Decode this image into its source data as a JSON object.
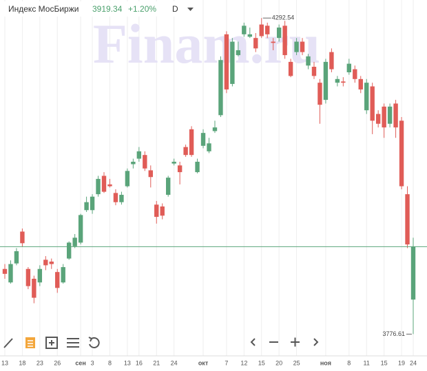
{
  "chart_data": {
    "type": "candlestick",
    "title": "Индекс МосБиржи",
    "change": "+1.20%",
    "interval": "D",
    "watermark": "Finam.ru",
    "categories": [
      "13",
      null,
      null,
      "18",
      null,
      null,
      "23",
      null,
      null,
      "26",
      null,
      null,
      null,
      "сен",
      null,
      "3",
      null,
      null,
      "8",
      null,
      null,
      "13",
      null,
      "16",
      null,
      null,
      "21",
      null,
      null,
      "24",
      null,
      null,
      null,
      null,
      "окт",
      null,
      null,
      null,
      "7",
      null,
      null,
      "12",
      null,
      null,
      "15",
      null,
      null,
      "20",
      null,
      null,
      "25",
      null,
      null,
      null,
      null,
      "ноя",
      null,
      null,
      null,
      "8",
      null,
      null,
      "11",
      null,
      null,
      "15",
      null,
      null,
      "19",
      null,
      "24"
    ],
    "open": [
      3883,
      3861,
      3892,
      3944,
      3883,
      3867,
      3861,
      3898,
      3895,
      3878,
      3861,
      3900,
      3920,
      3926,
      3979,
      3979,
      4005,
      4035,
      4021,
      4007,
      3992,
      4018,
      4054,
      4063,
      4069,
      4044,
      3988,
      3985,
      4004,
      4055,
      4052,
      4082,
      4111,
      4041,
      4084,
      4075,
      4108,
      4134,
      4266,
      4185,
      4232,
      4266,
      4262,
      4260,
      4282,
      4280,
      4254,
      4260,
      4280,
      4221,
      4237,
      4254,
      4215,
      4213,
      4187,
      4159,
      4237,
      4187,
      4189,
      4204,
      4209,
      4193,
      4142,
      4181,
      4136,
      4148,
      4120,
      4153,
      4125,
      4005,
      3833
    ],
    "high": [
      3891,
      3897,
      3917,
      3949,
      3886,
      3872,
      3889,
      3904,
      3900,
      3883,
      3891,
      3928,
      3940,
      3973,
      4001,
      4005,
      4035,
      4041,
      4030,
      4013,
      4009,
      4047,
      4063,
      4082,
      4075,
      4052,
      3994,
      3990,
      4035,
      4063,
      4058,
      4086,
      4116,
      4063,
      4111,
      4097,
      4125,
      4230,
      4271,
      4260,
      4254,
      4285,
      4277,
      4268,
      4292.54,
      4285,
      4260,
      4282,
      4288,
      4226,
      4260,
      4260,
      4234,
      4221,
      4193,
      4226,
      4243,
      4198,
      4196,
      4226,
      4215,
      4198,
      4193,
      4187,
      4142,
      4153,
      4153,
      4159,
      4131,
      4018,
      3934
    ],
    "low": [
      3867,
      3859,
      3889,
      3919,
      3850,
      3827,
      3855,
      3881,
      3883,
      3844,
      3859,
      3898,
      3917,
      3923,
      3976,
      3973,
      4001,
      4007,
      4016,
      3987,
      3988,
      4016,
      4047,
      4058,
      4043,
      4016,
      3957,
      3964,
      4001,
      4052,
      4021,
      4066,
      4066,
      4039,
      4080,
      4072,
      4105,
      4131,
      4170,
      4181,
      4230,
      4262,
      4260,
      4237,
      4260,
      4260,
      4240,
      4254,
      4226,
      4196,
      4232,
      4232,
      4209,
      4193,
      4120,
      4153,
      4204,
      4181,
      4181,
      4200,
      4187,
      4170,
      4136,
      4103,
      4114,
      4097,
      4114,
      4097,
      4013,
      3917,
      3776.61
    ],
    "close": [
      3875,
      3891,
      3912,
      3925,
      3855,
      3836,
      3883,
      3889,
      3891,
      3852,
      3886,
      3926,
      3934,
      3971,
      3992,
      4001,
      4030,
      4009,
      4018,
      3992,
      4004,
      4043,
      4058,
      4075,
      4047,
      4033,
      3968,
      3970,
      4032,
      4058,
      4041,
      4069,
      4069,
      4058,
      4105,
      4088,
      4114,
      4224,
      4176,
      4254,
      4240,
      4280,
      4266,
      4243,
      4263,
      4266,
      4252,
      4277,
      4232,
      4198,
      4254,
      4237,
      4230,
      4198,
      4151,
      4221,
      4209,
      4193,
      4187,
      4218,
      4193,
      4176,
      4187,
      4125,
      4120,
      4114,
      4148,
      4114,
      4018,
      3923,
      3919.34
    ],
    "up_color": "#5aa47a",
    "down_color": "#e05c57",
    "ylim": [
      3749,
      4322
    ],
    "grid": true
  }
}
